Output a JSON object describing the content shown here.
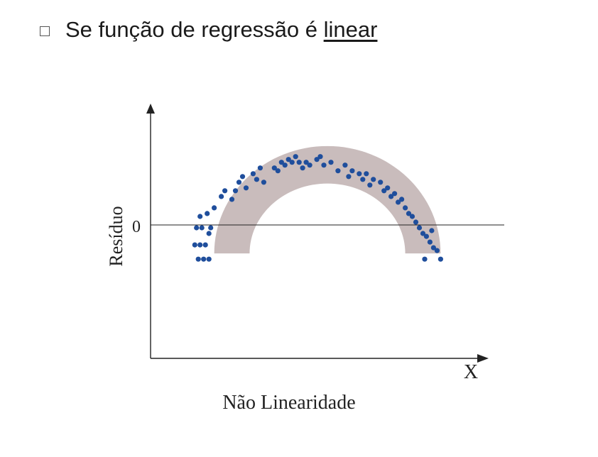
{
  "bullet": {
    "icon": "square-bullet-icon",
    "text_prefix": "Se função de regressão é ",
    "text_emphasis": "linear"
  },
  "chart_data": {
    "type": "scatter",
    "xlabel": "X",
    "ylabel": "Resíduo",
    "caption": "Não Linearidade",
    "y_tick_label": "0",
    "x_range": [
      0,
      100
    ],
    "y_range": [
      -40,
      40
    ],
    "band_color": "#c9bcbc",
    "point_color": "#1f4e9c",
    "band": {
      "center_x": 50,
      "radius_outer": 32,
      "radius_inner": 22,
      "center_y": -10
    },
    "points": [
      [
        12.5,
        -7
      ],
      [
        14,
        -7
      ],
      [
        15.5,
        -7
      ],
      [
        13,
        -1
      ],
      [
        14.5,
        -1
      ],
      [
        17,
        -1
      ],
      [
        14,
        3
      ],
      [
        16,
        4
      ],
      [
        16.5,
        -3
      ],
      [
        13.5,
        -12
      ],
      [
        15,
        -12
      ],
      [
        16.5,
        -12
      ],
      [
        18,
        6
      ],
      [
        20,
        10
      ],
      [
        21,
        12
      ],
      [
        23,
        9
      ],
      [
        24,
        12
      ],
      [
        25,
        15
      ],
      [
        26,
        17
      ],
      [
        27,
        13
      ],
      [
        29,
        18
      ],
      [
        30,
        16
      ],
      [
        31,
        20
      ],
      [
        32,
        15
      ],
      [
        35,
        20
      ],
      [
        36,
        19
      ],
      [
        37,
        22
      ],
      [
        38,
        21
      ],
      [
        39,
        23
      ],
      [
        40,
        22
      ],
      [
        41,
        24
      ],
      [
        42,
        22
      ],
      [
        43,
        20
      ],
      [
        44,
        22
      ],
      [
        45,
        21
      ],
      [
        47,
        23
      ],
      [
        48,
        24
      ],
      [
        49,
        21
      ],
      [
        51,
        22
      ],
      [
        53,
        19
      ],
      [
        55,
        21
      ],
      [
        56,
        17
      ],
      [
        57,
        19
      ],
      [
        59,
        18
      ],
      [
        60,
        16
      ],
      [
        61,
        18
      ],
      [
        62,
        14
      ],
      [
        63,
        16
      ],
      [
        65,
        15
      ],
      [
        66,
        12
      ],
      [
        67,
        13
      ],
      [
        68,
        10
      ],
      [
        69,
        11
      ],
      [
        70,
        8
      ],
      [
        71,
        9
      ],
      [
        72,
        6
      ],
      [
        73,
        4
      ],
      [
        74,
        3
      ],
      [
        75,
        1
      ],
      [
        76,
        -1
      ],
      [
        77,
        -3
      ],
      [
        78,
        -4
      ],
      [
        79,
        -6
      ],
      [
        80,
        -8
      ],
      [
        81,
        -9
      ],
      [
        82,
        -12
      ],
      [
        77.5,
        -12
      ],
      [
        79.5,
        -2
      ]
    ]
  }
}
